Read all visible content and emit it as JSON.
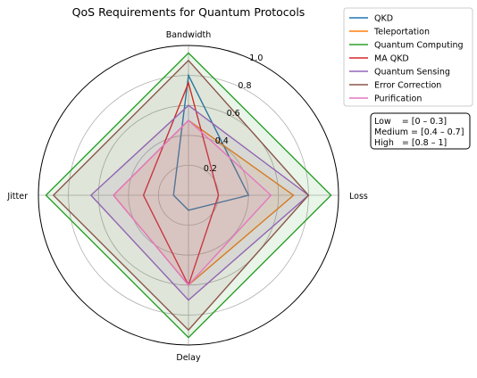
{
  "chart_data": {
    "type": "radar",
    "title": "QoS Requirements for Quantum Protocols",
    "axes": [
      "Bandwidth",
      "Loss",
      "Delay",
      "Jitter"
    ],
    "rlim": [
      0,
      1.0
    ],
    "radial_ticks": [
      0.2,
      0.4,
      0.6,
      0.8,
      1.0
    ],
    "radial_tick_labels": [
      "0.2",
      "0.4",
      "0.6",
      "0.8",
      "1.0"
    ],
    "grid": true,
    "legend_position": "top-right, outside",
    "series": [
      {
        "name": "QKD",
        "color": "#1f77b4",
        "values": [
          0.8,
          0.4,
          0.1,
          0.1
        ],
        "filled": false
      },
      {
        "name": "Teleportation",
        "color": "#ff7f0e",
        "values": [
          0.5,
          0.7,
          0.6,
          0.5
        ],
        "filled": true
      },
      {
        "name": "Quantum Computing",
        "color": "#2ca02c",
        "values": [
          0.95,
          0.95,
          0.95,
          0.95
        ],
        "filled": true
      },
      {
        "name": "MA QKD",
        "color": "#d62728",
        "values": [
          0.75,
          0.2,
          0.6,
          0.3
        ],
        "filled": false
      },
      {
        "name": "Quantum Sensing",
        "color": "#9467bd",
        "values": [
          0.6,
          0.8,
          0.7,
          0.65
        ],
        "filled": true
      },
      {
        "name": "Error Correction",
        "color": "#8c564b",
        "values": [
          0.9,
          0.8,
          0.9,
          0.9
        ],
        "filled": true
      },
      {
        "name": "Purification",
        "color": "#e377c2",
        "values": [
          0.5,
          0.55,
          0.6,
          0.5
        ],
        "filled": true
      }
    ],
    "annotation_box": {
      "lines": [
        "Low    = [0 – 0.3]",
        "Medium = [0.4 – 0.7]",
        "High   = [0.8 – 1]"
      ]
    }
  }
}
